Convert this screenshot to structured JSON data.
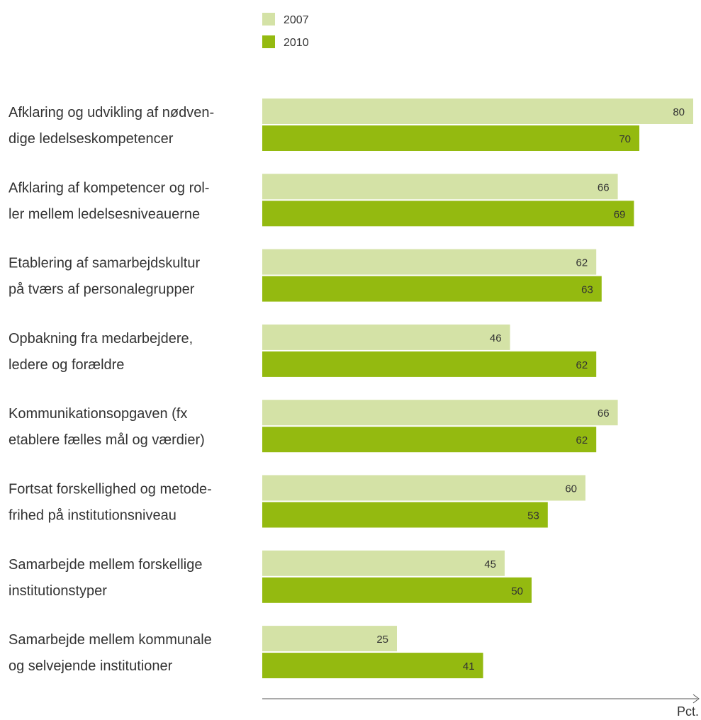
{
  "chart_data": {
    "type": "bar",
    "orientation": "horizontal",
    "categories": [
      [
        "Afklaring og udvikling af nødven-",
        "dige ledelseskompetencer"
      ],
      [
        "Afklaring af kompetencer og rol-",
        "ler mellem ledelsesniveauerne"
      ],
      [
        "Etablering af samarbejdskultur",
        "på tværs af personalegrupper"
      ],
      [
        "Opbakning fra medarbejdere,",
        "ledere og forældre"
      ],
      [
        "Kommunikationsopgaven (fx",
        "etablere fælles mål og værdier)"
      ],
      [
        "Fortsat forskellighed og metode-",
        "frihed på institutionsniveau"
      ],
      [
        "Samarbejde mellem forskellige",
        "institutionstyper"
      ],
      [
        "Samarbejde mellem kommunale",
        "og selvejende institutioner"
      ]
    ],
    "series": [
      {
        "name": "2007",
        "color": "#d4e2a6",
        "values": [
          80,
          66,
          62,
          46,
          66,
          60,
          45,
          25
        ]
      },
      {
        "name": "2010",
        "color": "#94ba10",
        "values": [
          70,
          69,
          63,
          62,
          62,
          53,
          50,
          41
        ]
      }
    ],
    "xlabel": "Pct.",
    "xlim": [
      0,
      80
    ],
    "grid": false,
    "legend_position": "top"
  }
}
